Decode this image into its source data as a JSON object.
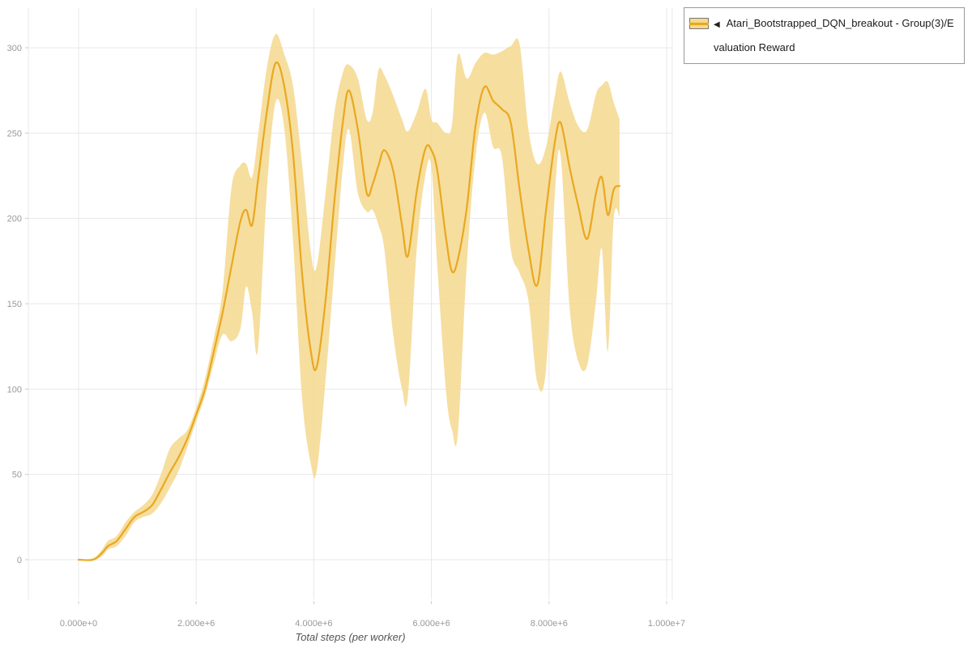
{
  "legend": {
    "filter_icon": "◀"
  },
  "chart_data": {
    "type": "line",
    "title": "",
    "xlabel": "Total steps (per worker)",
    "ylabel": "",
    "grid": true,
    "legend_position": "top-right",
    "x_axis": {
      "unit": "steps",
      "tick_values_e6": [
        0,
        2,
        4,
        6,
        8,
        10
      ],
      "tick_labels": [
        "0.000e+0",
        "2.000e+6",
        "4.000e+6",
        "6.000e+6",
        "8.000e+6",
        "1.000e+7"
      ],
      "lim_e6": [
        -0.85,
        10.1
      ]
    },
    "y_axis": {
      "tick_values": [
        0,
        50,
        100,
        150,
        200,
        250,
        300
      ],
      "tick_labels": [
        "0",
        "50",
        "100",
        "150",
        "200",
        "250",
        "300"
      ],
      "lim": [
        -23,
        323
      ]
    },
    "series": [
      {
        "name": "Atari_Bootstrapped_DQN_breakout - Group(3)/Evaluation Reward",
        "line_color": "#e9a820",
        "band_color": "#f4d88e",
        "x_e6": [
          0.0,
          0.25,
          0.4,
          0.5,
          0.65,
          0.8,
          0.95,
          1.1,
          1.25,
          1.4,
          1.55,
          1.7,
          1.85,
          2.0,
          2.15,
          2.3,
          2.45,
          2.6,
          2.75,
          2.85,
          2.95,
          3.05,
          3.2,
          3.35,
          3.5,
          3.65,
          3.8,
          3.95,
          4.05,
          4.2,
          4.35,
          4.5,
          4.6,
          4.75,
          4.9,
          5.0,
          5.1,
          5.2,
          5.35,
          5.5,
          5.6,
          5.75,
          5.9,
          6.0,
          6.1,
          6.25,
          6.35,
          6.45,
          6.6,
          6.75,
          6.9,
          7.05,
          7.2,
          7.35,
          7.5,
          7.65,
          7.8,
          7.95,
          8.1,
          8.2,
          8.35,
          8.5,
          8.65,
          8.8,
          8.9,
          9.0,
          9.1,
          9.2
        ],
        "mean": [
          0,
          0,
          4,
          8,
          11,
          18,
          25,
          28,
          32,
          41,
          51,
          60,
          71,
          85,
          100,
          122,
          145,
          172,
          198,
          205,
          196,
          222,
          262,
          291,
          277,
          237,
          168,
          122,
          113,
          152,
          210,
          258,
          275,
          252,
          215,
          220,
          231,
          240,
          228,
          196,
          178,
          216,
          241,
          240,
          228,
          188,
          169,
          176,
          206,
          254,
          277,
          269,
          264,
          256,
          217,
          182,
          161,
          205,
          245,
          256,
          230,
          207,
          188,
          215,
          224,
          202,
          217,
          219
        ],
        "lower": [
          0,
          0,
          2,
          6,
          8,
          14,
          22,
          25,
          27,
          33,
          42,
          52,
          66,
          81,
          96,
          115,
          132,
          128,
          135,
          160,
          145,
          123,
          215,
          268,
          252,
          185,
          95,
          56,
          52,
          105,
          170,
          232,
          252,
          215,
          204,
          205,
          196,
          182,
          132,
          100,
          96,
          182,
          226,
          230,
          172,
          98,
          76,
          74,
          172,
          236,
          262,
          242,
          236,
          182,
          168,
          152,
          104,
          112,
          215,
          236,
          148,
          116,
          114,
          152,
          182,
          122,
          200,
          201
        ],
        "upper": [
          0,
          1,
          6,
          11,
          14,
          22,
          28,
          32,
          38,
          50,
          65,
          71,
          76,
          89,
          106,
          130,
          158,
          218,
          231,
          232,
          224,
          248,
          288,
          308,
          296,
          277,
          232,
          180,
          172,
          215,
          262,
          286,
          290,
          282,
          258,
          262,
          287,
          284,
          272,
          258,
          251,
          262,
          276,
          258,
          256,
          250,
          255,
          296,
          282,
          291,
          297,
          296,
          298,
          301,
          302,
          252,
          232,
          242,
          272,
          286,
          268,
          254,
          252,
          273,
          278,
          280,
          268,
          258
        ]
      }
    ]
  }
}
